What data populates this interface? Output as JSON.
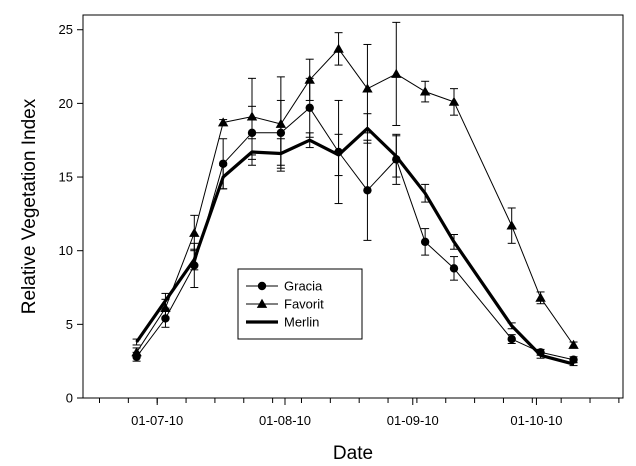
{
  "chart_data": {
    "type": "line",
    "xlabel": "Date",
    "ylabel": "Relative Vegetation Index",
    "x_ticks": [
      "01-07-10",
      "01-08-10",
      "01-09-10",
      "01-10-10"
    ],
    "xlim": [
      "2010-06-13",
      "2010-10-22"
    ],
    "ylim": [
      0,
      26
    ],
    "y_ticks": [
      0,
      5,
      10,
      15,
      20,
      25
    ],
    "grid": false,
    "legend_position": "lower-center",
    "series": [
      {
        "name": "Gracia",
        "marker": "circle",
        "line": "thin",
        "color": "#000000",
        "x": [
          "2010-06-26",
          "2010-07-03",
          "2010-07-10",
          "2010-07-17",
          "2010-07-24",
          "2010-07-31",
          "2010-08-07",
          "2010-08-14",
          "2010-08-21",
          "2010-08-28",
          "2010-09-04",
          "2010-09-11",
          "2010-09-25",
          "2010-10-02",
          "2010-10-10"
        ],
        "y": [
          2.8,
          5.4,
          9.0,
          15.9,
          18.0,
          18.0,
          19.7,
          16.7,
          14.1,
          16.2,
          10.6,
          8.8,
          4.0,
          3.1,
          2.6
        ],
        "error": [
          0.3,
          0.6,
          1.5,
          1.7,
          1.8,
          2.2,
          2.0,
          3.5,
          3.4,
          1.7,
          0.9,
          0.8,
          0.3,
          0.2,
          0.2
        ]
      },
      {
        "name": "Favorit",
        "marker": "triangle",
        "line": "thin",
        "color": "#000000",
        "x": [
          "2010-06-26",
          "2010-07-03",
          "2010-07-10",
          "2010-07-17",
          "2010-07-24",
          "2010-07-31",
          "2010-08-07",
          "2010-08-14",
          "2010-08-21",
          "2010-08-28",
          "2010-09-04",
          "2010-09-11",
          "2010-09-25",
          "2010-10-02",
          "2010-10-10"
        ],
        "y": [
          3.1,
          6.1,
          11.2,
          18.7,
          19.1,
          18.6,
          21.6,
          23.7,
          21.0,
          22.0,
          20.8,
          20.1,
          11.7,
          6.8,
          3.6
        ],
        "error": [
          0.3,
          0.6,
          1.2,
          0.2,
          2.6,
          3.2,
          1.4,
          1.1,
          3.0,
          3.5,
          0.7,
          0.9,
          1.2,
          0.4,
          0.2
        ]
      },
      {
        "name": "Merlin",
        "marker": "none",
        "line": "thick",
        "color": "#000000",
        "x": [
          "2010-06-26",
          "2010-07-03",
          "2010-07-10",
          "2010-07-17",
          "2010-07-24",
          "2010-07-31",
          "2010-08-07",
          "2010-08-14",
          "2010-08-21",
          "2010-08-28",
          "2010-09-04",
          "2010-09-11",
          "2010-09-25",
          "2010-10-02",
          "2010-10-10"
        ],
        "y": [
          3.8,
          6.6,
          9.4,
          15.0,
          16.7,
          16.6,
          17.5,
          16.5,
          18.3,
          16.4,
          13.9,
          10.6,
          4.9,
          2.9,
          2.3
        ],
        "error": [
          0.2,
          0.5,
          0.7,
          0.8,
          0.9,
          1.0,
          0.5,
          1.4,
          1.0,
          1.4,
          0.6,
          0.5,
          0.2,
          0.2,
          0.1
        ]
      }
    ]
  }
}
